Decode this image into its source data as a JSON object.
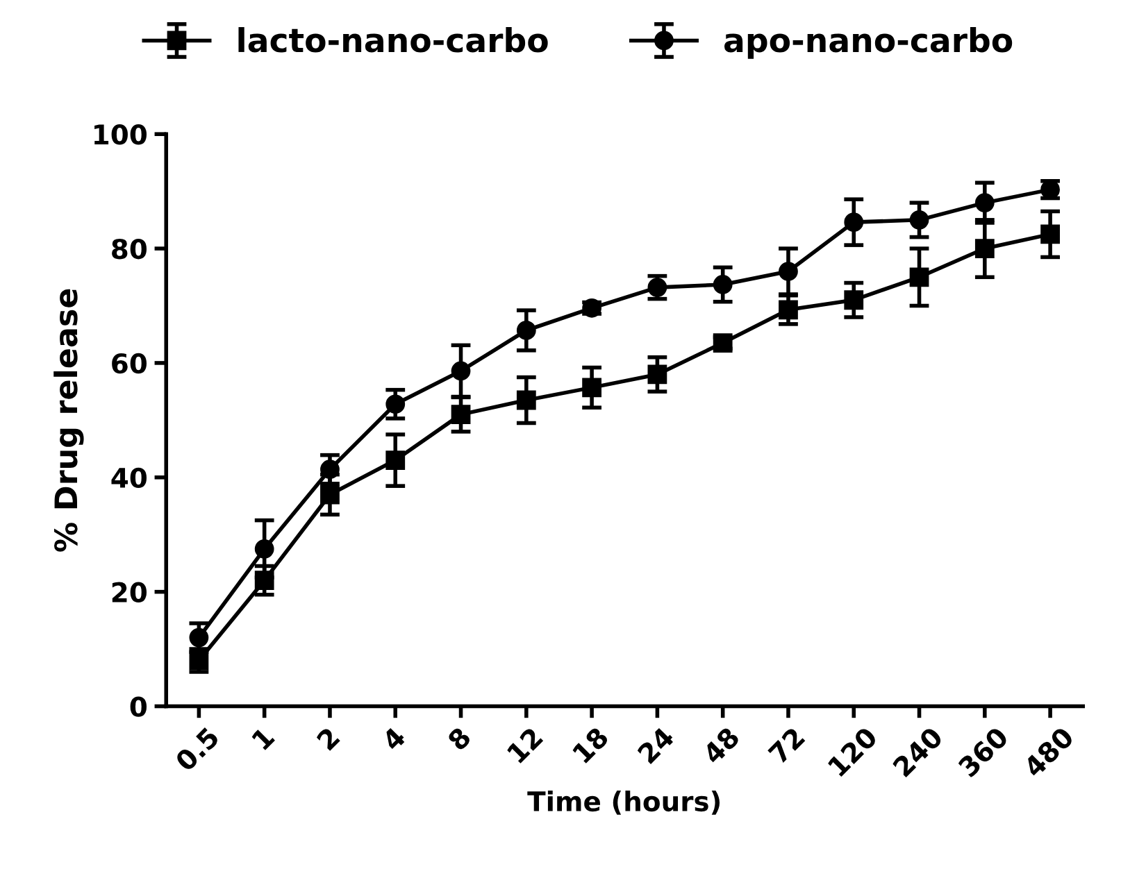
{
  "chart_data": {
    "type": "line",
    "xlabel": "Time (hours)",
    "ylabel": "% Drug release",
    "categories": [
      "0.5",
      "1",
      "2",
      "4",
      "8",
      "12",
      "18",
      "24",
      "48",
      "72",
      "120",
      "240",
      "360",
      "480"
    ],
    "series": [
      {
        "name": "lacto-nano-carbo",
        "color": "#000000",
        "marker": "square",
        "values": [
          8,
          22,
          37,
          43,
          51,
          53.5,
          55.7,
          58,
          63.5,
          69.3,
          71,
          75,
          80,
          82.5
        ],
        "errors": [
          2,
          2.5,
          3.5,
          4.5,
          3,
          4,
          3.5,
          3,
          1,
          2.5,
          3,
          5,
          5,
          4
        ]
      },
      {
        "name": "apo-nano-carbo",
        "color": "#000000",
        "marker": "circle",
        "values": [
          12,
          27.5,
          41.4,
          52.8,
          58.6,
          65.7,
          69.6,
          73.2,
          73.7,
          76,
          84.6,
          85,
          88,
          90.3
        ],
        "errors": [
          2.5,
          5,
          2.5,
          2.5,
          4.5,
          3.5,
          1,
          2,
          3,
          4,
          4,
          3,
          3.5,
          1.5
        ]
      }
    ],
    "ylim": [
      0,
      100
    ],
    "yticks": [
      0,
      20,
      40,
      60,
      80,
      100
    ],
    "grid": false,
    "legend": "top",
    "line_style": "solid"
  }
}
